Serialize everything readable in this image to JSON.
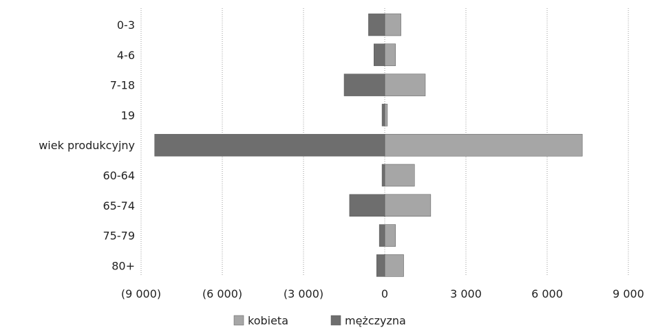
{
  "chart_data": {
    "type": "bar",
    "orientation": "horizontal",
    "stacked": true,
    "categories": [
      "0-3",
      "4-6",
      "7-18",
      "19",
      "wiek produkcyjny",
      "60-64",
      "65-74",
      "75-79",
      "80+"
    ],
    "series": [
      {
        "name": "kobieta",
        "values": [
          600,
          400,
          1500,
          100,
          7300,
          1100,
          1700,
          400,
          700
        ],
        "color": "#a6a6a6"
      },
      {
        "name": "mężczyzna",
        "values": [
          -600,
          -400,
          -1500,
          -100,
          -8500,
          -100,
          -1300,
          -200,
          -300
        ],
        "color": "#6e6e6e"
      }
    ],
    "xticks": [
      "(9 000)",
      "(6 000)",
      "(3 000)",
      "0",
      "3 000",
      "6 000",
      "9 000"
    ],
    "xlim": [
      -9000,
      9000
    ],
    "grid": true,
    "legend_position": "bottom"
  }
}
